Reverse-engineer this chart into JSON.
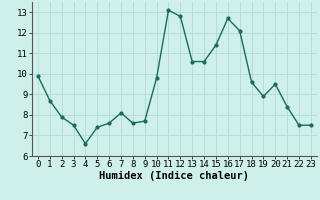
{
  "x": [
    0,
    1,
    2,
    3,
    4,
    5,
    6,
    7,
    8,
    9,
    10,
    11,
    12,
    13,
    14,
    15,
    16,
    17,
    18,
    19,
    20,
    21,
    22,
    23
  ],
  "y": [
    9.9,
    8.7,
    7.9,
    7.5,
    6.6,
    7.4,
    7.6,
    8.1,
    7.6,
    7.7,
    9.8,
    13.1,
    12.8,
    10.6,
    10.6,
    11.4,
    12.7,
    12.1,
    9.6,
    8.9,
    9.5,
    8.4,
    7.5,
    7.5
  ],
  "line_color": "#1a6b5a",
  "marker": "o",
  "marker_size": 2.0,
  "linewidth": 1.0,
  "xlabel": "Humidex (Indice chaleur)",
  "xlim": [
    -0.5,
    23.5
  ],
  "ylim": [
    6,
    13.5
  ],
  "yticks": [
    6,
    7,
    8,
    9,
    10,
    11,
    12,
    13
  ],
  "xticks": [
    0,
    1,
    2,
    3,
    4,
    5,
    6,
    7,
    8,
    9,
    10,
    11,
    12,
    13,
    14,
    15,
    16,
    17,
    18,
    19,
    20,
    21,
    22,
    23
  ],
  "background_color": "#cff0ea",
  "grid_color": "#b8ddd6",
  "xlabel_fontsize": 7.5,
  "tick_fontsize": 6.5,
  "title": ""
}
